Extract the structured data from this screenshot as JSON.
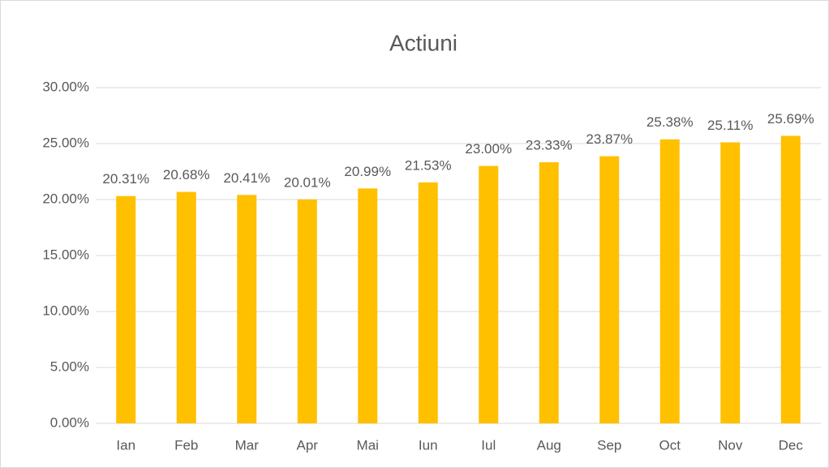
{
  "chart_data": {
    "type": "bar",
    "title": "Actiuni",
    "categories": [
      "Ian",
      "Feb",
      "Mar",
      "Apr",
      "Mai",
      "Iun",
      "Iul",
      "Aug",
      "Sep",
      "Oct",
      "Nov",
      "Dec"
    ],
    "values": [
      20.31,
      20.68,
      20.41,
      20.01,
      20.99,
      21.53,
      23.0,
      23.33,
      23.87,
      25.38,
      25.11,
      25.69
    ],
    "value_labels": [
      "20.31%",
      "20.68%",
      "20.41%",
      "20.01%",
      "20.99%",
      "21.53%",
      "23.00%",
      "23.33%",
      "23.87%",
      "25.38%",
      "25.11%",
      "25.69%"
    ],
    "color": "#ffc000",
    "ylim": [
      0,
      30
    ],
    "yticks": [
      {
        "value": 0,
        "label": "0.00%"
      },
      {
        "value": 5,
        "label": "5.00%"
      },
      {
        "value": 10,
        "label": "10.00%"
      },
      {
        "value": 15,
        "label": "15.00%"
      },
      {
        "value": 20,
        "label": "20.00%"
      },
      {
        "value": 25,
        "label": "25.00%"
      },
      {
        "value": 30,
        "label": "30.00%"
      }
    ],
    "grid": true
  }
}
